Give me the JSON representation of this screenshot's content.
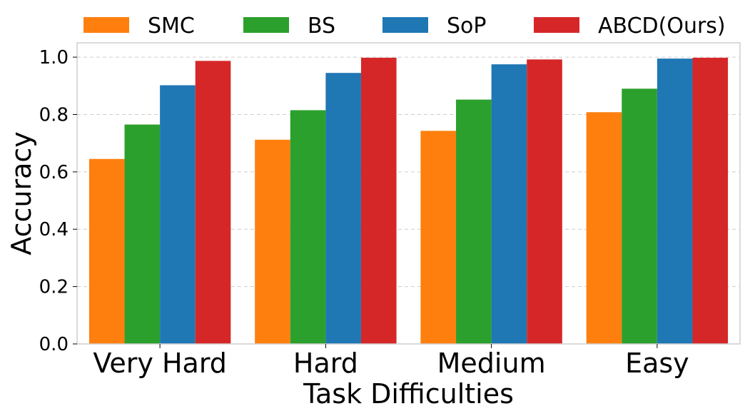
{
  "chart_data": {
    "type": "bar",
    "title": "",
    "xlabel": "Task Difficulties",
    "ylabel": "Accuracy",
    "ylim": [
      0,
      1.05
    ],
    "yticks": [
      0.0,
      0.2,
      0.4,
      0.6,
      0.8,
      1.0
    ],
    "ytick_labels": [
      "0.0",
      "0.2",
      "0.4",
      "0.6",
      "0.8",
      "1.0"
    ],
    "grid": true,
    "legend_position": "top",
    "categories": [
      "Very Hard",
      "Hard",
      "Medium",
      "Easy"
    ],
    "series": [
      {
        "name": "SMC",
        "color": "#ff7f0e",
        "values": [
          0.645,
          0.712,
          0.743,
          0.808
        ]
      },
      {
        "name": "BS",
        "color": "#2ca02c",
        "values": [
          0.765,
          0.815,
          0.852,
          0.89
        ]
      },
      {
        "name": "SoP",
        "color": "#1f77b4",
        "values": [
          0.902,
          0.945,
          0.975,
          0.995
        ]
      },
      {
        "name": "ABCD(Ours)",
        "color": "#d62728",
        "values": [
          0.987,
          0.998,
          0.992,
          0.998
        ]
      }
    ]
  }
}
